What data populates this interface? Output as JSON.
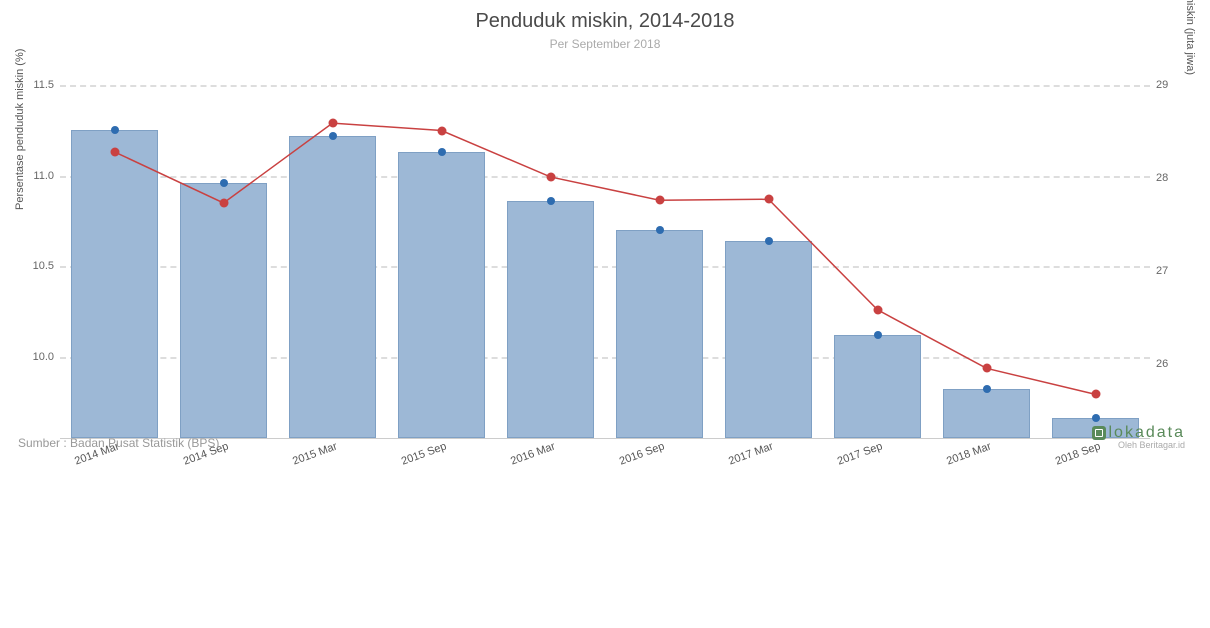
{
  "title": "Penduduk miskin, 2014-2018",
  "subtitle": "Per September 2018",
  "y_left": {
    "label": "Persentase penduduk miskin (%)",
    "min": 9.55,
    "max": 11.5,
    "ticks": [
      10.0,
      10.5,
      11.0,
      11.5
    ]
  },
  "y_right": {
    "label": "Jumlah penduduk miskin (juta jiwa)",
    "min": 25.2,
    "max": 29.0,
    "ticks": [
      26,
      27,
      28,
      29
    ]
  },
  "categories": [
    "2014 Mar",
    "2014 Sep",
    "2015 Mar",
    "2015 Sep",
    "2016 Mar",
    "2016 Sep",
    "2017 Mar",
    "2017 Sep",
    "2018 Mar",
    "2018 Sep"
  ],
  "bars_pct": [
    11.25,
    10.96,
    11.22,
    11.13,
    10.86,
    10.7,
    10.64,
    10.12,
    9.82,
    9.66
  ],
  "blue_dots_pct": [
    11.25,
    10.96,
    11.22,
    11.13,
    10.86,
    10.7,
    10.64,
    10.12,
    9.82,
    9.66
  ],
  "red_line_jiwa": [
    28.28,
    27.73,
    28.59,
    28.51,
    28.01,
    27.76,
    27.77,
    26.58,
    25.95,
    25.67
  ],
  "styling": {
    "bar_fill": "#9db8d6",
    "bar_stroke": "#7fa0c4",
    "blue_dot_color": "#2e6cb0",
    "red_dot_color": "#c94141",
    "red_line_color": "#c94141",
    "grid_color": "#dddddd",
    "background": "#ffffff",
    "title_color": "#4a4a4a",
    "subtitle_color": "#aaaaaa",
    "tick_color": "#666666",
    "title_fontsize": 20,
    "subtitle_fontsize": 12,
    "tick_fontsize": 11,
    "bar_width_ratio": 0.8
  },
  "source_text": "Sumber : Badan Pusat Statistik (BPS)",
  "logo": {
    "main": "lokadata",
    "sub": "Oleh Beritagar.id"
  }
}
